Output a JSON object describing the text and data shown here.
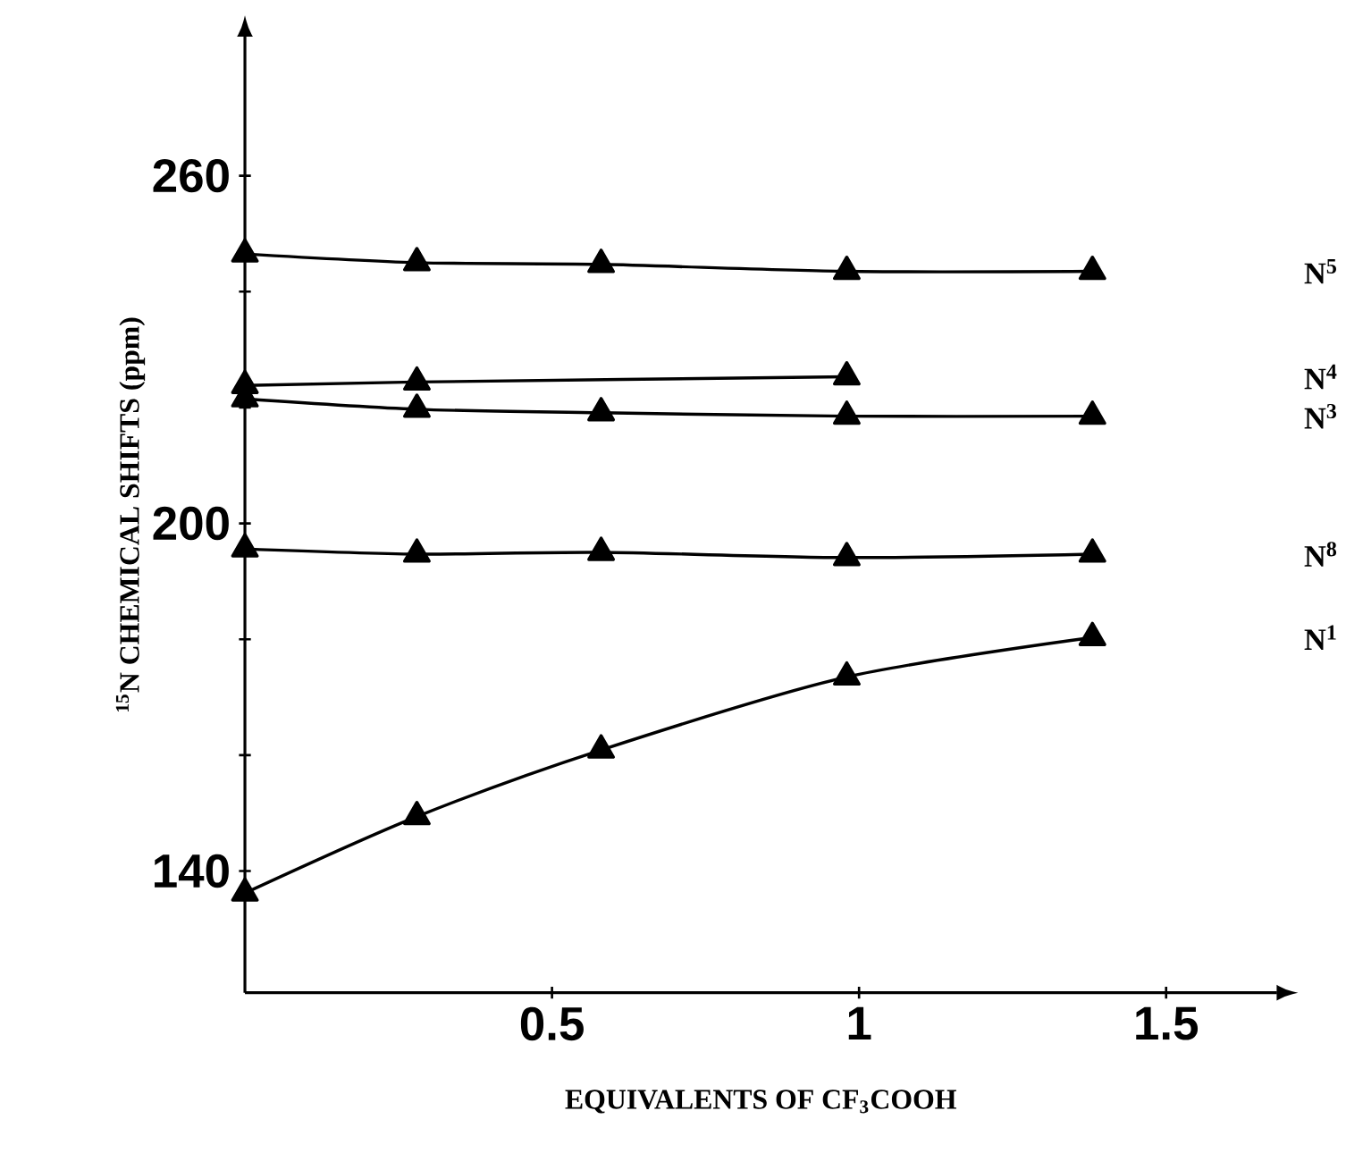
{
  "chart_data": {
    "type": "line",
    "xlabel": "EQUIVALENTS OF CF$_{3}$COOH",
    "ylabel": "$^{15}$N CHEMICAL SHIFTS (ppm)",
    "xlim": [
      0,
      1.68
    ],
    "ylim": [
      119,
      284
    ],
    "xticks": [
      0.5,
      1,
      1.5
    ],
    "yticks": [
      140,
      {
        "value": 160,
        "label": null
      },
      {
        "value": 180,
        "label": null
      },
      200,
      {
        "value": 220,
        "label": null
      },
      {
        "value": 240,
        "label": null
      },
      260
    ],
    "marker": "triangle",
    "line_style": "solid",
    "grid": false,
    "x": [
      0,
      0.28,
      0.58,
      0.98,
      1.38
    ],
    "series": [
      {
        "name": "N$^{5}$",
        "color": "#000000",
        "values": [
          246.5,
          245,
          244.7,
          243.5,
          243.5
        ]
      },
      {
        "name": "N$^{4}$",
        "color": "#000000",
        "values": [
          223.8,
          224.4,
          null,
          225.3,
          null
        ]
      },
      {
        "name": "N$^{3}$",
        "color": "#000000",
        "values": [
          221.5,
          219.7,
          219.1,
          218.5,
          218.5
        ]
      },
      {
        "name": "N$^{8}$",
        "color": "#000000",
        "values": [
          195.6,
          194.7,
          195,
          194.1,
          194.7
        ]
      },
      {
        "name": "N$^{1}$",
        "color": "#000000",
        "values": [
          136.2,
          149.4,
          160.9,
          173.5,
          180.3
        ]
      }
    ]
  }
}
